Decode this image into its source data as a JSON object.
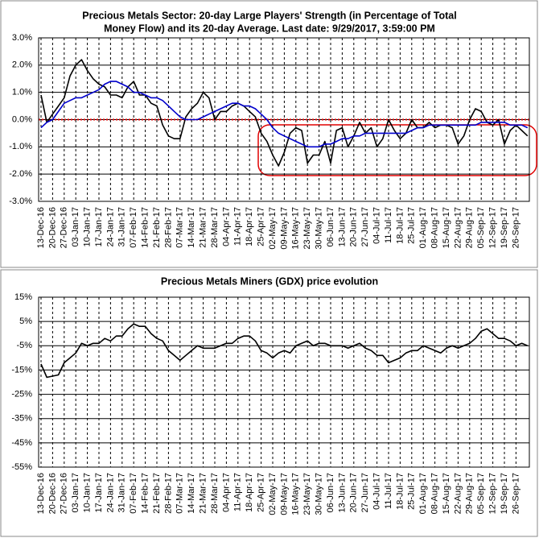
{
  "chart_data": [
    {
      "type": "line",
      "title": [
        "Precious Metals Sector: 20-day Large Players' Strength (in Percentage of Total",
        "Money Flow) and its 20-day Average. Last date: 9/29/2017, 3:59:00 PM"
      ],
      "categories": [
        "13-Dec-16",
        null,
        "20-Dec-16",
        null,
        "27-Dec-16",
        null,
        "03-Jan-17",
        null,
        "10-Jan-17",
        null,
        "17-Jan-17",
        null,
        "24-Jan-17",
        null,
        "31-Jan-17",
        null,
        "07-Feb-17",
        null,
        "14-Feb-17",
        null,
        "21-Feb-17",
        null,
        "28-Feb-17",
        null,
        "07-Mar-17",
        null,
        "14-Mar-17",
        null,
        "21-Mar-17",
        null,
        "28-Mar-17",
        null,
        "04-Apr-17",
        null,
        "11-Apr-17",
        null,
        "18-Apr-17",
        null,
        "25-Apr-17",
        null,
        "02-May-17",
        null,
        "09-May-17",
        null,
        "16-May-17",
        null,
        "23-May-17",
        null,
        "30-May-17",
        null,
        "06-Jun-17",
        null,
        "13-Jun-17",
        null,
        "20-Jun-17",
        null,
        "27-Jun-17",
        null,
        "04-Jul-17",
        null,
        "11-Jul-17",
        null,
        "18-Jul-17",
        null,
        "25-Jul-17",
        null,
        "01-Aug-17",
        null,
        "08-Aug-17",
        null,
        "15-Aug-17",
        null,
        "22-Aug-17",
        null,
        "29-Aug-17",
        null,
        "05-Sep-17",
        null,
        "12-Sep-17",
        null,
        "19-Sep-17",
        null,
        "26-Sep-17",
        null,
        null
      ],
      "series": [
        {
          "color": "#000000",
          "values": [
            0.9,
            -0.1,
            0.2,
            0.5,
            0.8,
            1.6,
            2.0,
            2.2,
            1.8,
            1.5,
            1.3,
            1.2,
            0.9,
            0.9,
            0.8,
            1.2,
            1.4,
            0.9,
            0.9,
            0.6,
            0.5,
            -0.2,
            -0.6,
            -0.7,
            -0.7,
            0.1,
            0.4,
            0.6,
            1.0,
            0.8,
            0.0,
            0.3,
            0.3,
            0.5,
            0.6,
            0.5,
            0.3,
            0.1,
            -0.5,
            -0.8,
            -1.3,
            -1.7,
            -1.2,
            -0.5,
            -0.3,
            -0.4,
            -1.6,
            -1.3,
            -1.3,
            -0.8,
            -1.6,
            -0.4,
            -0.3,
            -1.0,
            -0.6,
            -0.1,
            -0.5,
            -0.3,
            -1.0,
            -0.7,
            0.0,
            -0.4,
            -0.7,
            -0.5,
            0.0,
            -0.3,
            -0.3,
            -0.1,
            -0.3,
            -0.2,
            -0.2,
            -0.3,
            -0.9,
            -0.6,
            0.0,
            0.4,
            0.3,
            -0.1,
            -0.2,
            0.0,
            -0.9,
            -0.4,
            -0.2,
            -0.4,
            -0.6
          ]
        },
        {
          "color": "#0000cc",
          "values": [
            -0.3,
            -0.1,
            0.0,
            0.3,
            0.6,
            0.7,
            0.8,
            0.8,
            0.9,
            1.0,
            1.1,
            1.3,
            1.4,
            1.4,
            1.3,
            1.2,
            1.0,
            1.0,
            0.9,
            0.8,
            0.8,
            0.7,
            0.5,
            0.3,
            0.1,
            0.0,
            0.0,
            0.0,
            0.1,
            0.2,
            0.3,
            0.4,
            0.5,
            0.6,
            0.6,
            0.5,
            0.5,
            0.4,
            0.2,
            0.0,
            -0.3,
            -0.5,
            -0.6,
            -0.7,
            -0.8,
            -0.9,
            -1.0,
            -1.0,
            -1.0,
            -0.9,
            -0.9,
            -0.8,
            -0.7,
            -0.7,
            -0.6,
            -0.6,
            -0.5,
            -0.5,
            -0.5,
            -0.5,
            -0.5,
            -0.5,
            -0.5,
            -0.5,
            -0.4,
            -0.3,
            -0.3,
            -0.2,
            -0.2,
            -0.2,
            -0.2,
            -0.2,
            -0.2,
            -0.2,
            -0.2,
            -0.2,
            -0.1,
            -0.1,
            -0.1,
            -0.1,
            -0.1,
            -0.2,
            -0.2,
            -0.2,
            -0.3
          ]
        }
      ],
      "ylim": [
        -3,
        3
      ],
      "yticks": [
        {
          "value": 3,
          "label": "3.0%"
        },
        {
          "value": 2,
          "label": "2.0%"
        },
        {
          "value": 1,
          "label": "1.0%"
        },
        {
          "value": 0,
          "label": "0.0%"
        },
        {
          "value": -1,
          "label": "-1.0%"
        },
        {
          "value": -2,
          "label": "-2.0%"
        },
        {
          "value": -3,
          "label": "-3.0%"
        }
      ],
      "grid": true
    },
    {
      "type": "line",
      "title": [
        "Precious Metals Miners (GDX) price evolution"
      ],
      "categories": [
        "13-Dec-16",
        null,
        "20-Dec-16",
        null,
        "27-Dec-16",
        null,
        "03-Jan-17",
        null,
        "10-Jan-17",
        null,
        "17-Jan-17",
        null,
        "24-Jan-17",
        null,
        "31-Jan-17",
        null,
        "07-Feb-17",
        null,
        "14-Feb-17",
        null,
        "21-Feb-17",
        null,
        "28-Feb-17",
        null,
        "07-Mar-17",
        null,
        "14-Mar-17",
        null,
        "21-Mar-17",
        null,
        "28-Mar-17",
        null,
        "04-Apr-17",
        null,
        "11-Apr-17",
        null,
        "18-Apr-17",
        null,
        "25-Apr-17",
        null,
        "02-May-17",
        null,
        "09-May-17",
        null,
        "16-May-17",
        null,
        "23-May-17",
        null,
        "30-May-17",
        null,
        "06-Jun-17",
        null,
        "13-Jun-17",
        null,
        "20-Jun-17",
        null,
        "27-Jun-17",
        null,
        "04-Jul-17",
        null,
        "11-Jul-17",
        null,
        "18-Jul-17",
        null,
        "25-Jul-17",
        null,
        "01-Aug-17",
        null,
        "08-Aug-17",
        null,
        "15-Aug-17",
        null,
        "22-Aug-17",
        null,
        "29-Aug-17",
        null,
        "05-Sep-17",
        null,
        "12-Sep-17",
        null,
        "19-Sep-17",
        null,
        "26-Sep-17",
        null,
        null
      ],
      "series": [
        {
          "color": "#000000",
          "values": [
            -12.5,
            -18,
            -17.5,
            -17,
            -12,
            -10,
            -8,
            -4,
            -5,
            -4,
            -4,
            -2,
            -3,
            -1,
            -1,
            2,
            4,
            3,
            3,
            0,
            -2,
            -3,
            -7,
            -9,
            -11,
            -9,
            -7,
            -5,
            -6,
            -6,
            -6,
            -5,
            -4,
            -4,
            -2,
            -1,
            -1,
            -3,
            -7,
            -8,
            -10,
            -8,
            -7,
            -8,
            -5,
            -4,
            -3,
            -5,
            -4,
            -4,
            -5,
            -5,
            -5,
            -6,
            -5,
            -4,
            -6,
            -7,
            -9,
            -9,
            -12,
            -11,
            -10,
            -8,
            -7,
            -7,
            -5,
            -6,
            -7,
            -8,
            -6,
            -5,
            -6,
            -5,
            -4,
            -2,
            1,
            2,
            0,
            -2,
            -2,
            -3,
            -5,
            -4,
            -5
          ]
        }
      ],
      "ylim": [
        -55,
        15
      ],
      "yticks": [
        {
          "value": 15,
          "label": "15%"
        },
        {
          "value": 5,
          "label": "5%"
        },
        {
          "value": -5,
          "label": "-5%"
        },
        {
          "value": -15,
          "label": "-15%"
        },
        {
          "value": -25,
          "label": "-25%"
        },
        {
          "value": -35,
          "label": "-35%"
        },
        {
          "value": -45,
          "label": "-45%"
        },
        {
          "value": -55,
          "label": "-55%"
        }
      ],
      "grid": true
    }
  ]
}
